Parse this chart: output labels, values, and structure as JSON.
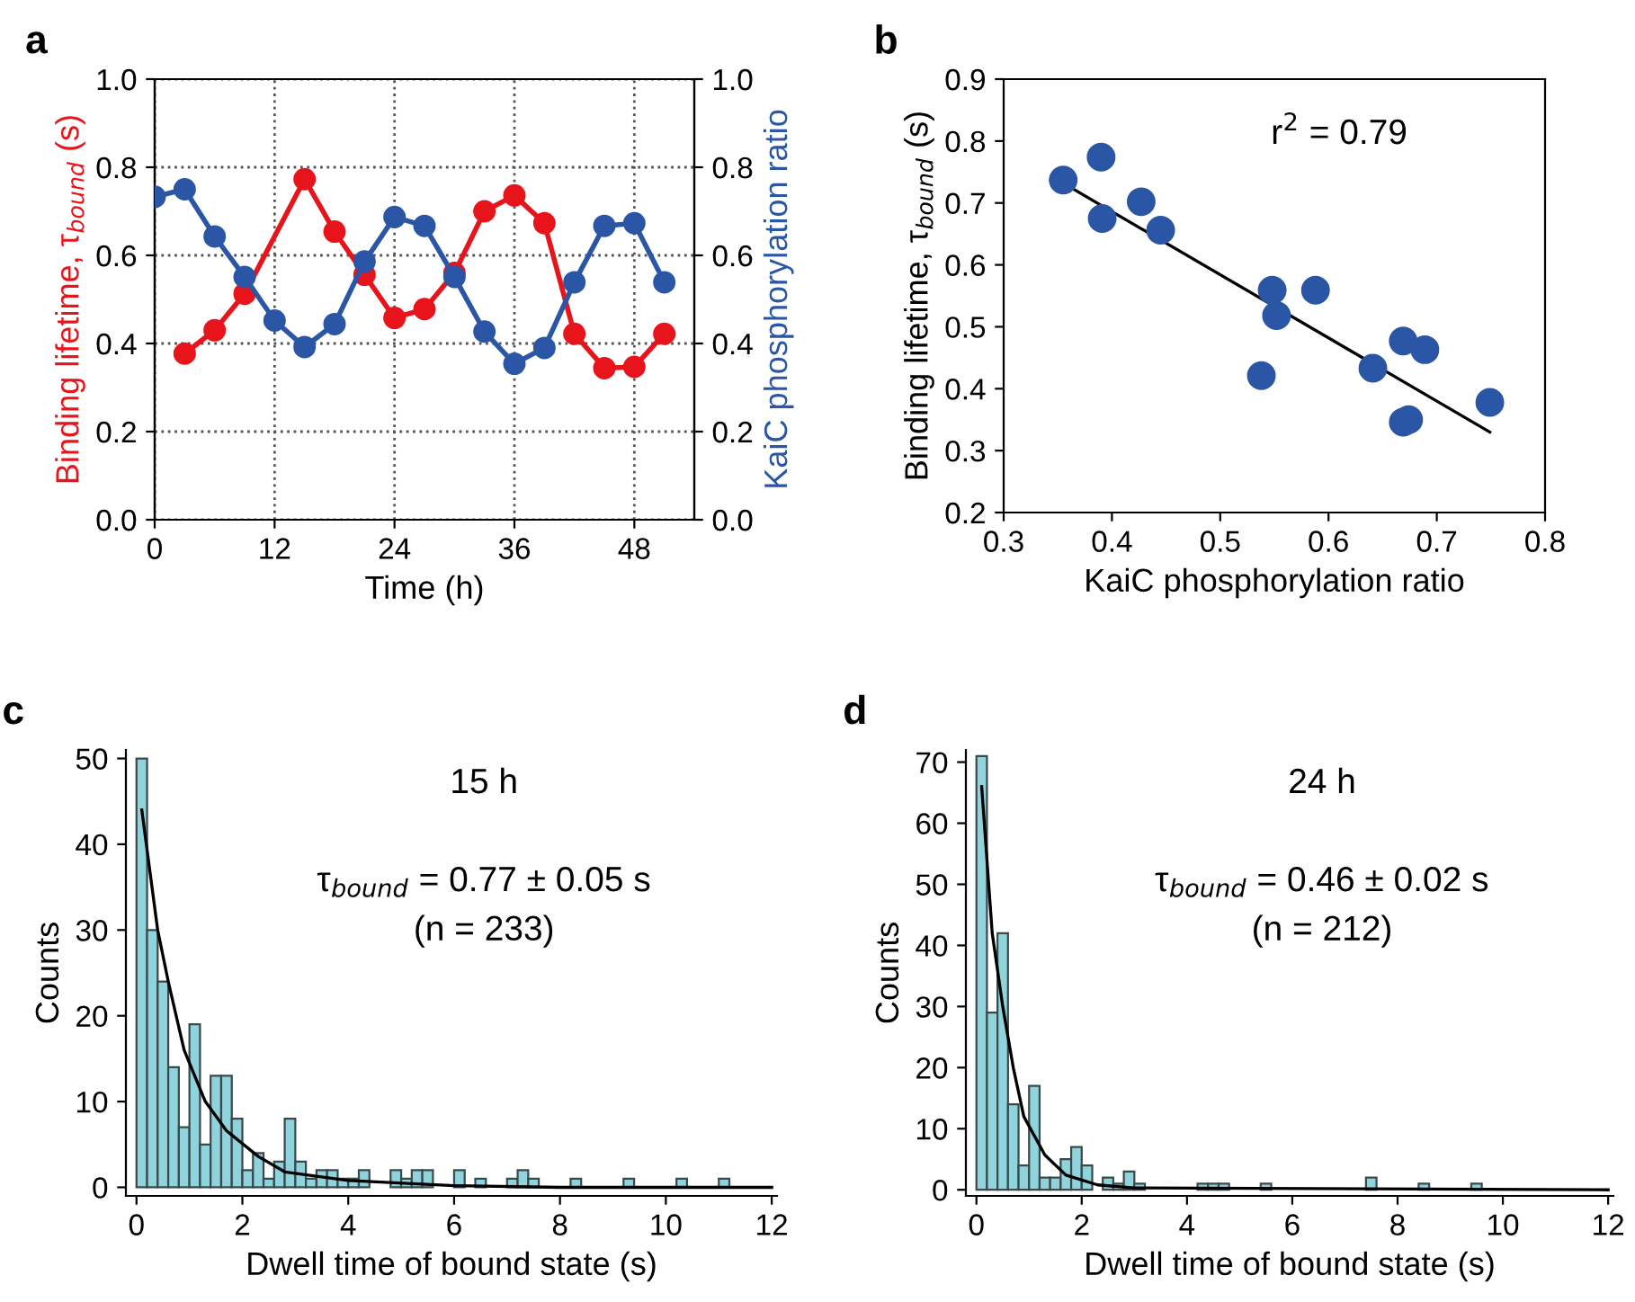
{
  "chart_data": [
    {
      "type": "line",
      "title": "a",
      "xlabel": "Time (h)",
      "ylabel": "Binding lifetime, τ$_{bound}$ (s)",
      "y2label": "KaiC phosphorylation ratio",
      "xlim": [
        0,
        54
      ],
      "xticks": [
        0,
        12,
        24,
        36,
        48
      ],
      "ylim": [
        0,
        1.0
      ],
      "yticks": [
        {
          "value": 0,
          "label": "0.0"
        },
        0.2,
        0.4,
        0.6,
        0.8,
        {
          "value": 1,
          "label": "1.0"
        }
      ],
      "y2lim": [
        0,
        1.0
      ],
      "y2ticks": [
        {
          "value": 0,
          "label": "0.0"
        },
        0.2,
        0.4,
        0.6,
        0.8,
        {
          "value": 1,
          "label": "1.0"
        }
      ],
      "grid": true,
      "marker": "circle",
      "series": [
        {
          "color": "#e8141b",
          "x": [
            3,
            6,
            9,
            15,
            18,
            21,
            24,
            27,
            30,
            33,
            36,
            39,
            42,
            45,
            48,
            51
          ],
          "values": [
            0.377,
            0.43,
            0.513,
            0.773,
            0.654,
            0.556,
            0.458,
            0.478,
            0.56,
            0.7,
            0.736,
            0.673,
            0.422,
            0.344,
            0.347,
            0.422
          ]
        },
        {
          "color": "#2a56a5",
          "axis": "y2",
          "x": [
            0,
            3,
            6,
            9,
            12,
            15,
            18,
            21,
            24,
            27,
            30,
            33,
            36,
            39,
            42,
            45,
            48,
            51
          ],
          "values": [
            0.733,
            0.75,
            0.643,
            0.551,
            0.452,
            0.392,
            0.444,
            0.586,
            0.687,
            0.667,
            0.551,
            0.427,
            0.354,
            0.39,
            0.539,
            0.667,
            0.673,
            0.539
          ]
        }
      ]
    },
    {
      "type": "scatter",
      "title": "b",
      "xlabel": "KaiC phosphorylation ratio",
      "ylabel": "Binding lifetime, τ$_{bound}$ (s)",
      "xlim": [
        0.3,
        0.8
      ],
      "xticks": [
        0.3,
        0.4,
        0.5,
        0.6,
        0.7,
        0.8
      ],
      "ylim": [
        0.2,
        0.9
      ],
      "yticks": [
        0.2,
        0.3,
        0.4,
        0.5,
        0.6,
        0.7,
        0.8,
        0.9
      ],
      "annotations": [
        "r$^{2}$ = 0.79"
      ],
      "series": [
        {
          "type": "scatter",
          "color": "#2a56a5",
          "x": [
            0.355,
            0.39,
            0.391,
            0.427,
            0.445,
            0.548,
            0.552,
            0.588,
            0.538,
            0.641,
            0.669,
            0.689,
            0.669,
            0.674,
            0.749
          ],
          "values": [
            0.737,
            0.774,
            0.675,
            0.702,
            0.656,
            0.559,
            0.518,
            0.559,
            0.421,
            0.433,
            0.477,
            0.463,
            0.346,
            0.35,
            0.378
          ]
        },
        {
          "type": "line",
          "color": "#000000",
          "x": [
            0.355,
            0.749
          ],
          "values": [
            0.732,
            0.33
          ]
        }
      ]
    },
    {
      "type": "histogram",
      "title": "c",
      "xlabel": "Dwell time of bound state (s)",
      "ylabel": "Counts",
      "xlim": [
        -0.2,
        12.1
      ],
      "xticks": [
        0,
        2,
        4,
        6,
        8,
        10,
        12
      ],
      "ylim": [
        -1,
        51
      ],
      "yticks": [
        0,
        10,
        20,
        30,
        40,
        50
      ],
      "annotations": [
        "15 h",
        "τ$_{bound}$ = 0.77 ± 0.05 s",
        "(n = 233)"
      ],
      "color": "#8fd3dc",
      "bins": [
        0,
        0.2,
        0.4,
        0.6,
        0.8,
        1.0,
        1.2,
        1.4,
        1.6,
        1.8,
        2.0,
        2.2,
        2.4,
        2.6,
        2.8,
        3.0,
        3.2,
        3.4,
        3.6,
        3.8,
        4.0,
        4.2,
        4.4,
        4.6,
        4.8,
        5.0,
        5.2,
        5.4,
        5.6,
        5.8,
        6.0,
        6.2,
        6.4,
        6.6,
        6.8,
        7.0,
        7.2,
        7.4,
        7.6,
        7.8,
        8.0,
        8.2,
        8.4,
        8.6,
        8.8,
        9.0,
        9.2,
        9.4,
        9.6,
        9.8,
        10.0,
        10.2,
        10.4,
        10.6,
        10.8,
        11.0,
        11.2,
        11.4,
        11.6,
        11.8,
        12.0
      ],
      "values": [
        50,
        30,
        24,
        14,
        7,
        19,
        5,
        13,
        13,
        8,
        2,
        4,
        1,
        3,
        8,
        3,
        1,
        2,
        2,
        1,
        1,
        2,
        0,
        0,
        2,
        1,
        2,
        2,
        0,
        0,
        2,
        0,
        1,
        0,
        0,
        1,
        2,
        1,
        0,
        0,
        0,
        1,
        0,
        0,
        0,
        0,
        1,
        0,
        0,
        0,
        0,
        1,
        0,
        0,
        0,
        1,
        0,
        0,
        0,
        0
      ],
      "series": [
        {
          "type": "line",
          "color": "#000000",
          "x": [
            0.1,
            0.4,
            0.6,
            0.9,
            1.3,
            1.7,
            2.3,
            2.8,
            4,
            6,
            8,
            10,
            12
          ],
          "values": [
            44,
            30,
            24,
            16,
            10,
            6.6,
            3.6,
            1.8,
            0.8,
            0.2,
            0,
            0,
            0
          ]
        }
      ]
    },
    {
      "type": "histogram",
      "title": "d",
      "xlabel": "Dwell time of bound state (s)",
      "ylabel": "Counts",
      "xlim": [
        -0.2,
        12.1
      ],
      "xticks": [
        0,
        2,
        4,
        6,
        8,
        10,
        12
      ],
      "ylim": [
        -1,
        72
      ],
      "yticks": [
        0,
        10,
        20,
        30,
        40,
        50,
        60,
        70
      ],
      "annotations": [
        "24 h",
        "τ$_{bound}$ = 0.46 ± 0.02 s",
        "(n = 212)"
      ],
      "color": "#8fd3dc",
      "bins": [
        0,
        0.2,
        0.4,
        0.6,
        0.8,
        1.0,
        1.2,
        1.4,
        1.6,
        1.8,
        2.0,
        2.2,
        2.4,
        2.6,
        2.8,
        3.0,
        3.2,
        3.4,
        3.6,
        3.8,
        4.0,
        4.2,
        4.4,
        4.6,
        4.8,
        5.0,
        5.2,
        5.4,
        5.6,
        5.8,
        6.0,
        6.2,
        6.4,
        6.6,
        6.8,
        7.0,
        7.2,
        7.4,
        7.6,
        7.8,
        8.0,
        8.2,
        8.4,
        8.6,
        8.8,
        9.0,
        9.2,
        9.4,
        9.6,
        9.8,
        10.0,
        10.2,
        10.4,
        10.6,
        10.8,
        11.0,
        11.2,
        11.4,
        11.6,
        11.8,
        12.0
      ],
      "values": [
        71,
        29,
        42,
        14,
        4,
        17,
        2,
        2,
        5,
        7,
        4,
        0,
        2,
        1,
        3,
        1,
        0,
        0,
        0,
        0,
        0,
        1,
        1,
        1,
        0,
        0,
        0,
        1,
        0,
        0,
        0,
        0,
        0,
        0,
        0,
        0,
        0,
        2,
        0,
        0,
        0,
        0,
        1,
        0,
        0,
        0,
        0,
        1,
        0,
        0,
        0,
        0,
        0,
        0,
        0,
        0,
        0,
        0,
        0,
        0
      ],
      "series": [
        {
          "type": "line",
          "color": "#000000",
          "x": [
            0.1,
            0.3,
            0.5,
            0.7,
            0.9,
            1.3,
            1.7,
            2.3,
            3,
            12
          ],
          "values": [
            66,
            42,
            30,
            20,
            12,
            5.7,
            2.4,
            0.8,
            0.3,
            0
          ]
        }
      ]
    }
  ]
}
